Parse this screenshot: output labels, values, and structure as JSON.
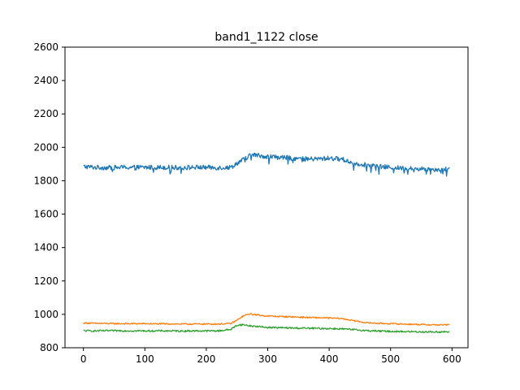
{
  "chart_data": {
    "type": "line",
    "title": "band1_1122 close",
    "xlabel": "",
    "ylabel": "",
    "xlim": [
      -30,
      626
    ],
    "ylim": [
      800,
      2600
    ],
    "x_ticks": [
      0,
      100,
      200,
      300,
      400,
      500,
      600
    ],
    "y_ticks": [
      800,
      1000,
      1200,
      1400,
      1600,
      1800,
      2000,
      2200,
      2400,
      2600
    ],
    "grid": false,
    "legend": "none",
    "series": [
      {
        "color": "#1f77b4",
        "x": [
          0,
          20,
          40,
          60,
          80,
          100,
          120,
          140,
          160,
          180,
          200,
          220,
          240,
          250,
          260,
          270,
          280,
          290,
          300,
          320,
          340,
          360,
          380,
          400,
          420,
          440,
          460,
          480,
          500,
          520,
          540,
          560,
          580,
          596
        ],
        "y": [
          1885,
          1880,
          1878,
          1880,
          1880,
          1880,
          1880,
          1880,
          1878,
          1880,
          1880,
          1878,
          1880,
          1905,
          1925,
          1950,
          1955,
          1948,
          1945,
          1940,
          1935,
          1930,
          1930,
          1935,
          1930,
          1905,
          1895,
          1885,
          1880,
          1875,
          1872,
          1870,
          1868,
          1868
        ]
      },
      {
        "color": "#ff7f0e",
        "x": [
          0,
          20,
          40,
          60,
          80,
          100,
          120,
          140,
          160,
          180,
          200,
          220,
          240,
          250,
          260,
          270,
          280,
          290,
          300,
          320,
          340,
          360,
          380,
          400,
          420,
          440,
          460,
          480,
          500,
          520,
          540,
          560,
          580,
          596
        ],
        "y": [
          948,
          946,
          945,
          944,
          944,
          944,
          943,
          943,
          942,
          942,
          942,
          942,
          945,
          965,
          990,
          1002,
          998,
          993,
          990,
          987,
          985,
          982,
          980,
          978,
          975,
          962,
          950,
          946,
          944,
          942,
          940,
          938,
          937,
          937
        ]
      },
      {
        "color": "#2ca02c",
        "x": [
          0,
          20,
          40,
          60,
          80,
          100,
          120,
          140,
          160,
          180,
          200,
          220,
          240,
          250,
          260,
          270,
          280,
          290,
          300,
          320,
          340,
          360,
          380,
          400,
          420,
          440,
          460,
          480,
          500,
          520,
          540,
          560,
          580,
          596
        ],
        "y": [
          902,
          901,
          902,
          902,
          901,
          901,
          901,
          901,
          900,
          901,
          901,
          901,
          910,
          935,
          938,
          932,
          928,
          925,
          922,
          920,
          918,
          917,
          916,
          915,
          913,
          908,
          903,
          900,
          898,
          897,
          896,
          895,
          895,
          895
        ]
      }
    ]
  }
}
